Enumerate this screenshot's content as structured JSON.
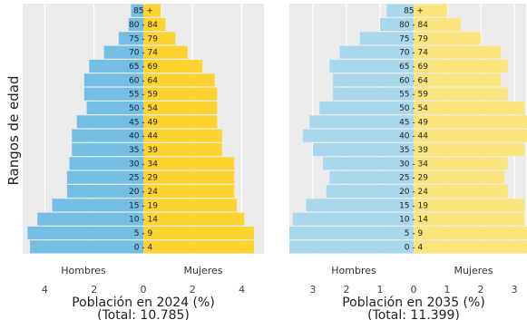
{
  "chart_data": [
    {
      "type": "bar",
      "orientation": "horizontal",
      "title": "",
      "xlabel": "Población en 2024 (%)",
      "xlabel_sub": "(Total: 10.785)",
      "ylabel": "Rangos de edad",
      "categories": [
        "0 - 4",
        "5 - 9",
        "10 - 14",
        "15 - 19",
        "20 - 24",
        "25 - 29",
        "30 - 34",
        "35 - 39",
        "40 - 44",
        "45 - 49",
        "50 - 54",
        "55 - 59",
        "60 - 64",
        "65 - 69",
        "70 - 74",
        "75 - 79",
        "80 - 84",
        "85 +"
      ],
      "series": [
        {
          "name": "Hombres",
          "color": "#74bde4",
          "values": [
            4.6,
            4.7,
            4.3,
            3.7,
            3.1,
            3.1,
            3.0,
            2.9,
            2.9,
            2.7,
            2.3,
            2.4,
            2.4,
            2.2,
            1.6,
            1.0,
            0.6,
            0.5
          ]
        },
        {
          "name": "Mujeres",
          "color": "#fdd42f",
          "values": [
            4.5,
            4.5,
            4.1,
            3.8,
            3.7,
            3.7,
            3.7,
            3.2,
            3.2,
            3.0,
            3.0,
            3.0,
            2.9,
            2.4,
            1.8,
            1.3,
            0.9,
            0.7
          ]
        }
      ],
      "xticks": [
        "4",
        "2",
        "0",
        "2",
        "4"
      ],
      "xlim": [
        -4.9,
        4.9
      ],
      "grid": true,
      "sex_labels": [
        "Hombres",
        "Mujeres"
      ]
    },
    {
      "type": "bar",
      "orientation": "horizontal",
      "title": "",
      "xlabel": "Población en 2035 (%)",
      "xlabel_sub": "(Total: 11.399)",
      "ylabel": "",
      "categories": [
        "0 - 4",
        "5 - 9",
        "10 - 14",
        "15 - 19",
        "20 - 24",
        "25 - 29",
        "30 - 34",
        "35 - 39",
        "40 - 44",
        "45 - 49",
        "50 - 54",
        "55 - 59",
        "60 - 64",
        "65 - 69",
        "70 - 74",
        "75 - 79",
        "80 - 84",
        "85 +"
      ],
      "series": [
        {
          "name": "Hombres",
          "color": "#a9d8ee",
          "values": [
            3.7,
            3.7,
            3.6,
            3.2,
            2.6,
            2.5,
            2.7,
            3.0,
            3.3,
            3.1,
            2.8,
            2.4,
            2.4,
            2.5,
            2.2,
            1.6,
            1.0,
            0.8
          ]
        },
        {
          "name": "Mujeres",
          "color": "#fce47d",
          "values": [
            3.6,
            3.6,
            3.3,
            3.3,
            2.8,
            2.7,
            2.8,
            3.3,
            3.5,
            3.4,
            3.3,
            2.8,
            2.6,
            2.8,
            2.6,
            2.0,
            1.4,
            1.0
          ]
        }
      ],
      "xticks": [
        "3",
        "2",
        "1",
        "0",
        "1",
        "2",
        "3"
      ],
      "xlim": [
        -3.7,
        3.7
      ],
      "grid": true,
      "sex_labels": [
        "Hombres",
        "Mujeres"
      ]
    }
  ]
}
